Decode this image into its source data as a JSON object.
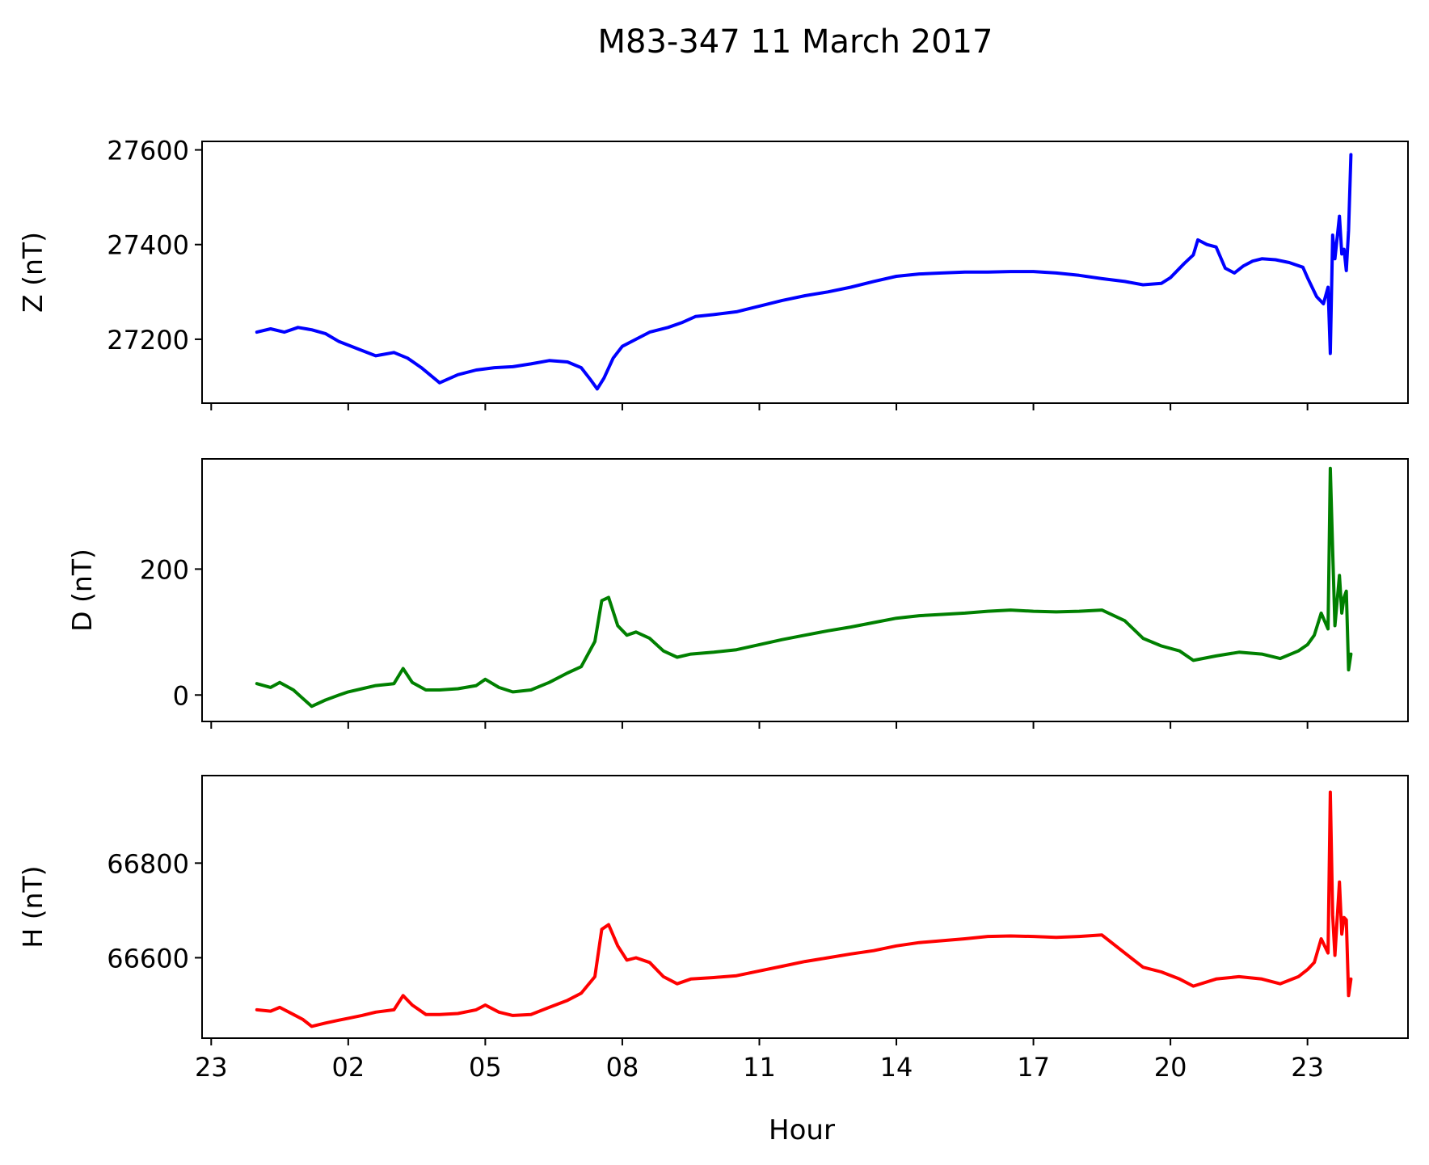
{
  "figure": {
    "title": "M83-347 11 March 2017",
    "xlabel": "Hour",
    "xticks": [
      {
        "h": -1,
        "label": "23"
      },
      {
        "h": 2,
        "label": "02"
      },
      {
        "h": 5,
        "label": "05"
      },
      {
        "h": 8,
        "label": "08"
      },
      {
        "h": 11,
        "label": "11"
      },
      {
        "h": 14,
        "label": "14"
      },
      {
        "h": 17,
        "label": "17"
      },
      {
        "h": 20,
        "label": "20"
      },
      {
        "h": 23,
        "label": "23"
      }
    ],
    "xlim": [
      -1.2,
      25.2
    ]
  },
  "chart_data": [
    {
      "type": "line",
      "ylabel": "Z (nT)",
      "color": "#0000ff",
      "ylim": [
        27065,
        27618
      ],
      "yticks": [
        27200,
        27400,
        27600
      ],
      "series": [
        {
          "x": [
            0,
            0.3,
            0.6,
            0.9,
            1.2,
            1.5,
            1.8,
            2.2,
            2.6,
            3.0,
            3.3,
            3.6,
            4.0,
            4.4,
            4.8,
            5.2,
            5.6,
            6.0,
            6.4,
            6.8,
            7.1,
            7.3,
            7.45,
            7.6,
            7.8,
            8.0,
            8.3,
            8.6,
            9.0,
            9.3,
            9.6,
            10.0,
            10.5,
            11.0,
            11.5,
            12.0,
            12.5,
            13.0,
            13.5,
            14.0,
            14.5,
            15.0,
            15.5,
            16.0,
            16.5,
            17.0,
            17.5,
            18.0,
            18.5,
            19.0,
            19.4,
            19.8,
            20.0,
            20.3,
            20.5,
            20.6,
            20.8,
            21.0,
            21.2,
            21.4,
            21.6,
            21.8,
            22.0,
            22.3,
            22.6,
            22.9,
            23.0,
            23.2,
            23.35,
            23.45,
            23.5,
            23.55,
            23.6,
            23.7,
            23.75,
            23.8,
            23.85,
            23.9,
            23.95
          ],
          "y": [
            27215,
            27222,
            27215,
            27225,
            27220,
            27212,
            27195,
            27180,
            27165,
            27172,
            27160,
            27140,
            27108,
            27125,
            27135,
            27140,
            27142,
            27148,
            27155,
            27152,
            27140,
            27115,
            27095,
            27118,
            27160,
            27185,
            27200,
            27215,
            27225,
            27235,
            27248,
            27252,
            27258,
            27270,
            27282,
            27292,
            27300,
            27310,
            27322,
            27333,
            27338,
            27340,
            27342,
            27342,
            27343,
            27343,
            27340,
            27335,
            27328,
            27322,
            27315,
            27318,
            27330,
            27360,
            27378,
            27410,
            27400,
            27395,
            27350,
            27340,
            27355,
            27365,
            27370,
            27368,
            27362,
            27352,
            27330,
            27290,
            27275,
            27310,
            27170,
            27420,
            27370,
            27460,
            27380,
            27390,
            27345,
            27430,
            27590
          ]
        }
      ]
    },
    {
      "type": "line",
      "ylabel": "D (nT)",
      "color": "#008000",
      "ylim": [
        -42,
        375
      ],
      "yticks": [
        0,
        200
      ],
      "series": [
        {
          "x": [
            0,
            0.3,
            0.5,
            0.8,
            1.0,
            1.2,
            1.5,
            1.8,
            2.0,
            2.3,
            2.6,
            3.0,
            3.2,
            3.4,
            3.7,
            4.0,
            4.4,
            4.8,
            5.0,
            5.3,
            5.6,
            6.0,
            6.4,
            6.8,
            7.1,
            7.4,
            7.55,
            7.7,
            7.9,
            8.1,
            8.3,
            8.6,
            8.9,
            9.2,
            9.5,
            10.0,
            10.5,
            11.0,
            11.5,
            12.0,
            12.5,
            13.0,
            13.5,
            14.0,
            14.5,
            15.0,
            15.5,
            16.0,
            16.5,
            17.0,
            17.5,
            18.0,
            18.5,
            19.0,
            19.4,
            19.8,
            20.2,
            20.5,
            21.0,
            21.5,
            22.0,
            22.4,
            22.8,
            23.0,
            23.15,
            23.3,
            23.45,
            23.5,
            23.55,
            23.6,
            23.7,
            23.75,
            23.8,
            23.85,
            23.9,
            23.95
          ],
          "y": [
            18,
            12,
            20,
            8,
            -5,
            -18,
            -8,
            0,
            5,
            10,
            15,
            18,
            42,
            20,
            8,
            8,
            10,
            15,
            25,
            12,
            5,
            8,
            20,
            35,
            45,
            85,
            150,
            155,
            110,
            95,
            100,
            90,
            70,
            60,
            65,
            68,
            72,
            80,
            88,
            95,
            102,
            108,
            115,
            122,
            126,
            128,
            130,
            133,
            135,
            133,
            132,
            133,
            135,
            118,
            90,
            78,
            70,
            55,
            62,
            68,
            65,
            58,
            70,
            80,
            95,
            130,
            105,
            360,
            230,
            110,
            190,
            130,
            155,
            165,
            40,
            65
          ]
        }
      ]
    },
    {
      "type": "line",
      "ylabel": "H (nT)",
      "color": "#ff0000",
      "ylim": [
        66430,
        66985
      ],
      "yticks": [
        66600,
        66800
      ],
      "series": [
        {
          "x": [
            0,
            0.3,
            0.5,
            0.8,
            1.0,
            1.2,
            1.5,
            1.8,
            2.0,
            2.3,
            2.6,
            3.0,
            3.2,
            3.4,
            3.7,
            4.0,
            4.4,
            4.8,
            5.0,
            5.3,
            5.6,
            6.0,
            6.4,
            6.8,
            7.1,
            7.4,
            7.55,
            7.7,
            7.9,
            8.1,
            8.3,
            8.6,
            8.9,
            9.2,
            9.5,
            10.0,
            10.5,
            11.0,
            11.5,
            12.0,
            12.5,
            13.0,
            13.5,
            14.0,
            14.5,
            15.0,
            15.5,
            16.0,
            16.5,
            17.0,
            17.5,
            18.0,
            18.5,
            19.0,
            19.4,
            19.8,
            20.2,
            20.5,
            21.0,
            21.5,
            22.0,
            22.4,
            22.8,
            23.0,
            23.15,
            23.3,
            23.45,
            23.5,
            23.55,
            23.6,
            23.7,
            23.75,
            23.8,
            23.85,
            23.9,
            23.95
          ],
          "y": [
            66490,
            66487,
            66495,
            66480,
            66470,
            66455,
            66462,
            66468,
            66472,
            66478,
            66485,
            66490,
            66520,
            66500,
            66480,
            66480,
            66482,
            66490,
            66500,
            66485,
            66478,
            66480,
            66495,
            66510,
            66525,
            66560,
            66660,
            66670,
            66625,
            66595,
            66600,
            66590,
            66560,
            66545,
            66555,
            66558,
            66562,
            66572,
            66582,
            66592,
            66600,
            66608,
            66615,
            66625,
            66632,
            66636,
            66640,
            66645,
            66646,
            66645,
            66643,
            66645,
            66648,
            66610,
            66580,
            66570,
            66555,
            66540,
            66555,
            66560,
            66555,
            66545,
            66560,
            66575,
            66590,
            66640,
            66610,
            66950,
            66690,
            66605,
            66760,
            66650,
            66685,
            66680,
            66520,
            66555
          ]
        }
      ]
    }
  ]
}
